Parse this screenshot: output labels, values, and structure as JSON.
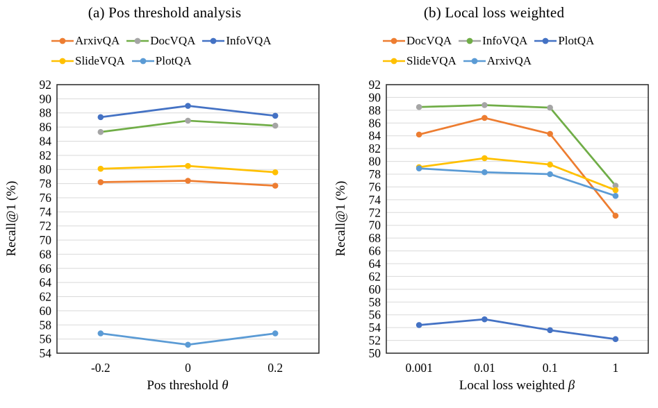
{
  "colors": {
    "orange": "#ED7D31",
    "green": "#70AD47",
    "dark_blue": "#4472C4",
    "yellow": "#FFC000",
    "light_blue": "#5B9BD5",
    "gray_marker": "#A5A5A5",
    "gridline": "#D9D9D9",
    "plot_border": "#262626"
  },
  "chart_data": [
    {
      "type": "line",
      "title": "(a) Pos threshold analysis",
      "xlabel": "Pos threshold",
      "xlabel_symbol": "θ",
      "ylabel": "Recall@1 (%)",
      "categories": [
        "-0.2",
        "0",
        "0.2"
      ],
      "ymin": 54,
      "ymax": 92,
      "ystep": 2,
      "grid": true,
      "legend_position": "top",
      "legend_rows": [
        [
          "ArxivQA",
          "DocVQA",
          "InfoVQA"
        ],
        [
          "SlideVQA",
          "PlotQA"
        ]
      ],
      "series": [
        {
          "name": "ArxivQA",
          "line": "#ED7D31",
          "marker": "#ED7D31",
          "values": [
            78.2,
            78.4,
            77.7
          ]
        },
        {
          "name": "DocVQA",
          "line": "#70AD47",
          "marker": "#A5A5A5",
          "values": [
            85.3,
            86.9,
            86.2
          ]
        },
        {
          "name": "InfoVQA",
          "line": "#4472C4",
          "marker": "#4472C4",
          "values": [
            87.4,
            89.0,
            87.6
          ]
        },
        {
          "name": "SlideVQA",
          "line": "#FFC000",
          "marker": "#FFC000",
          "values": [
            80.1,
            80.5,
            79.6
          ]
        },
        {
          "name": "PlotQA",
          "line": "#5B9BD5",
          "marker": "#5B9BD5",
          "values": [
            56.8,
            55.2,
            56.8
          ]
        }
      ]
    },
    {
      "type": "line",
      "title": "(b) Local loss weighted",
      "xlabel": "Local loss weighted",
      "xlabel_symbol": "β",
      "ylabel": "Recall@1 (%)",
      "categories": [
        "0.001",
        "0.01",
        "0.1",
        "1"
      ],
      "ymin": 50,
      "ymax": 92,
      "ystep": 2,
      "grid": true,
      "legend_position": "top",
      "legend_rows": [
        [
          "DocVQA",
          "InfoVQA",
          "PlotQA"
        ],
        [
          "SlideVQA",
          "ArxivQA"
        ]
      ],
      "series": [
        {
          "name": "DocVQA",
          "line": "#ED7D31",
          "marker": "#ED7D31",
          "values": [
            84.2,
            86.8,
            84.3,
            71.5
          ]
        },
        {
          "name": "InfoVQA",
          "line": "#70AD47",
          "marker": "#A5A5A5",
          "legend_line": "#A5A5A5",
          "legend_marker": "#70AD47",
          "values": [
            88.5,
            88.8,
            88.4,
            76.2
          ]
        },
        {
          "name": "PlotQA",
          "line": "#4472C4",
          "marker": "#4472C4",
          "values": [
            54.4,
            55.3,
            53.6,
            52.2
          ]
        },
        {
          "name": "SlideVQA",
          "line": "#FFC000",
          "marker": "#FFC000",
          "values": [
            79.1,
            80.5,
            79.5,
            75.5
          ]
        },
        {
          "name": "ArxivQA",
          "line": "#5B9BD5",
          "marker": "#5B9BD5",
          "values": [
            78.9,
            78.3,
            78.0,
            74.6
          ]
        }
      ]
    }
  ]
}
